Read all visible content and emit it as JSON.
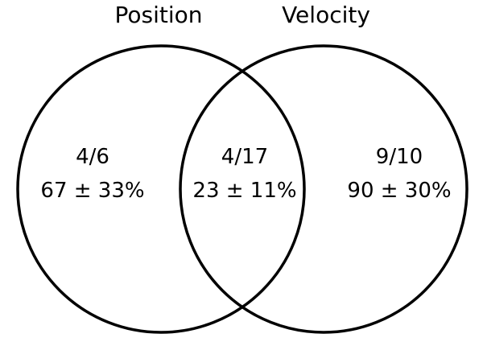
{
  "sets": [
    {
      "label": "Position"
    },
    {
      "label": "Velocity"
    }
  ],
  "regions": [
    {
      "fraction": "4/6",
      "percent": "67 ± 33%"
    },
    {
      "fraction": "4/17",
      "percent": "23 ± 11%"
    },
    {
      "fraction": "9/10",
      "percent": "90 ± 30%"
    }
  ],
  "colors": {
    "stroke": "#000000",
    "text": "#000000",
    "background": "#ffffff"
  }
}
